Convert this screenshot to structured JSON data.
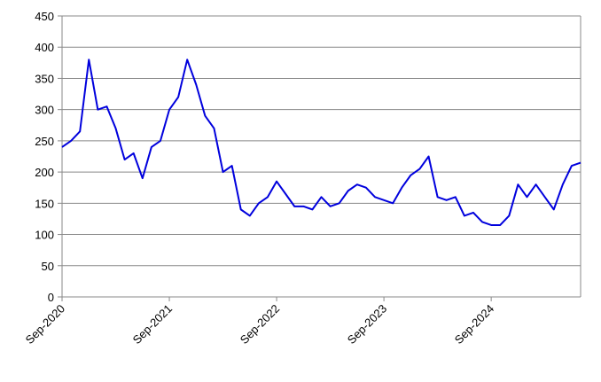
{
  "chart_data": {
    "type": "line",
    "x": [
      "Sep-2020",
      "Oct-2020",
      "Nov-2020",
      "Dec-2020",
      "Jan-2021",
      "Feb-2021",
      "Mar-2021",
      "Apr-2021",
      "May-2021",
      "Jun-2021",
      "Jul-2021",
      "Aug-2021",
      "Sep-2021",
      "Oct-2021",
      "Nov-2021",
      "Dec-2021",
      "Jan-2022",
      "Feb-2022",
      "Mar-2022",
      "Apr-2022",
      "May-2022",
      "Jun-2022",
      "Jul-2022",
      "Aug-2022",
      "Sep-2022",
      "Oct-2022",
      "Nov-2022",
      "Dec-2022",
      "Jan-2023",
      "Feb-2023",
      "Mar-2023",
      "Apr-2023",
      "May-2023",
      "Jun-2023",
      "Jul-2023",
      "Aug-2023",
      "Sep-2023",
      "Oct-2023",
      "Nov-2023",
      "Dec-2023",
      "Jan-2024",
      "Feb-2024",
      "Mar-2024",
      "Apr-2024",
      "May-2024",
      "Jun-2024",
      "Jul-2024",
      "Aug-2024",
      "Sep-2024",
      "Oct-2024",
      "Nov-2024",
      "Dec-2024",
      "Jan-2025",
      "Feb-2025",
      "Mar-2025",
      "Apr-2025",
      "May-2025",
      "Jun-2025",
      "Jul-2025"
    ],
    "series": [
      {
        "color": "#0000dd",
        "values": [
          240,
          250,
          265,
          380,
          300,
          305,
          270,
          220,
          230,
          190,
          240,
          250,
          300,
          320,
          380,
          340,
          290,
          270,
          200,
          210,
          140,
          130,
          150,
          160,
          185,
          165,
          145,
          145,
          140,
          160,
          145,
          150,
          170,
          180,
          175,
          160,
          155,
          150,
          175,
          195,
          205,
          225,
          160,
          155,
          160,
          130,
          135,
          120,
          115,
          115,
          130,
          180,
          160,
          180,
          160,
          140,
          180,
          210,
          215
        ]
      }
    ],
    "xticks": [
      "Sep-2020",
      "Sep-2021",
      "Sep-2022",
      "Sep-2023",
      "Sep-2024"
    ],
    "ylim": [
      0,
      450
    ],
    "yticks": [
      0,
      50,
      100,
      150,
      200,
      250,
      300,
      350,
      400,
      450
    ],
    "grid": true
  }
}
